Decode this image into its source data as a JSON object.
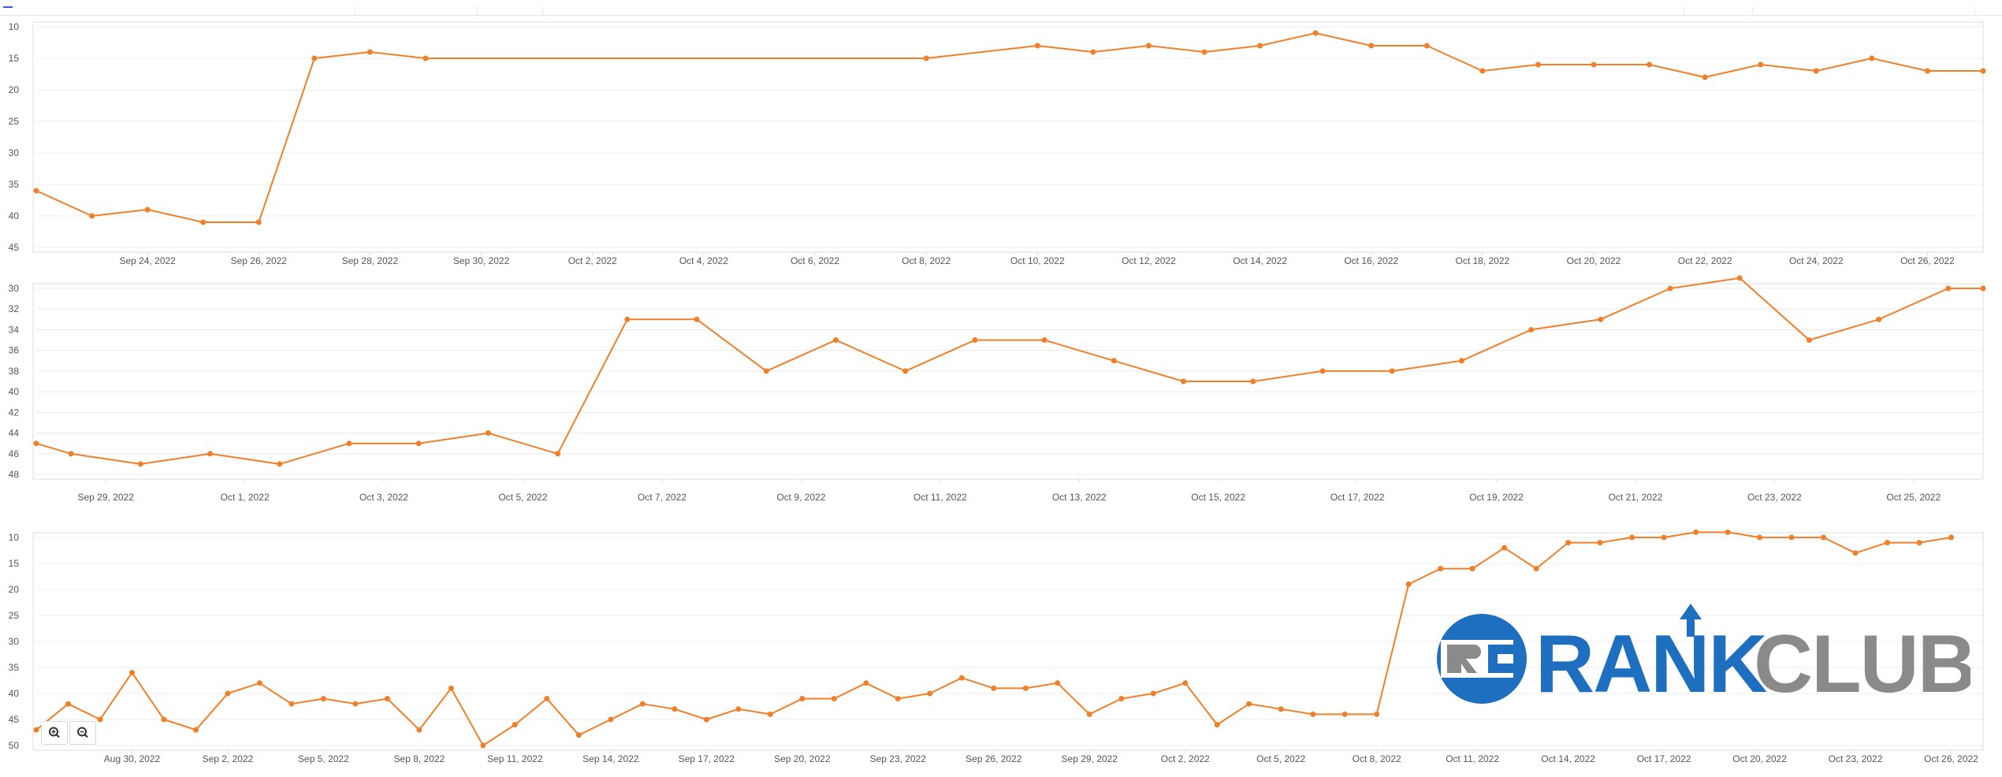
{
  "colors": {
    "series": "#f07f28",
    "grid": "#ececec",
    "axis": "#dcdcdc",
    "text": "#555555",
    "logo_blue": "#1e6fc0",
    "logo_gray": "#8a8a8a"
  },
  "toolbar": {
    "zoom_in_icon": "zoom-in-icon",
    "zoom_out_icon": "zoom-out-icon"
  },
  "logo": {
    "word1": "RANK",
    "word2": "CLUB",
    "mark": "RC"
  },
  "chart_data": [
    {
      "type": "line",
      "x_axis_type": "date",
      "y_inverted": true,
      "ylim": [
        10,
        45
      ],
      "y_ticks": [
        10,
        15,
        20,
        25,
        30,
        35,
        40,
        45
      ],
      "x_range": [
        "2022-09-22",
        "2022-10-27"
      ],
      "x_tick_labels": [
        "Sep 24, 2022",
        "Sep 26, 2022",
        "Sep 28, 2022",
        "Sep 30, 2022",
        "Oct 2, 2022",
        "Oct 4, 2022",
        "Oct 6, 2022",
        "Oct 8, 2022",
        "Oct 10, 2022",
        "Oct 12, 2022",
        "Oct 14, 2022",
        "Oct 16, 2022",
        "Oct 18, 2022",
        "Oct 20, 2022",
        "Oct 22, 2022",
        "Oct 24, 2022",
        "Oct 26, 2022"
      ],
      "x_tick_dates": [
        "2022-09-24",
        "2022-09-26",
        "2022-09-28",
        "2022-09-30",
        "2022-10-02",
        "2022-10-04",
        "2022-10-06",
        "2022-10-08",
        "2022-10-10",
        "2022-10-12",
        "2022-10-14",
        "2022-10-16",
        "2022-10-18",
        "2022-10-20",
        "2022-10-22",
        "2022-10-24",
        "2022-10-26"
      ],
      "grid": true,
      "series": [
        {
          "points": [
            [
              "2022-09-22",
              36
            ],
            [
              "2022-09-23",
              40
            ],
            [
              "2022-09-24",
              39
            ],
            [
              "2022-09-25",
              41
            ],
            [
              "2022-09-26",
              41
            ],
            [
              "2022-09-27",
              15
            ],
            [
              "2022-09-28",
              14
            ],
            [
              "2022-09-29",
              15
            ],
            [
              "2022-10-08",
              15
            ],
            [
              "2022-10-10",
              13
            ],
            [
              "2022-10-11",
              14
            ],
            [
              "2022-10-12",
              13
            ],
            [
              "2022-10-13",
              14
            ],
            [
              "2022-10-14",
              13
            ],
            [
              "2022-10-15",
              11
            ],
            [
              "2022-10-16",
              13
            ],
            [
              "2022-10-17",
              13
            ],
            [
              "2022-10-18",
              17
            ],
            [
              "2022-10-19",
              16
            ],
            [
              "2022-10-20",
              16
            ],
            [
              "2022-10-21",
              16
            ],
            [
              "2022-10-22",
              18
            ],
            [
              "2022-10-23",
              16
            ],
            [
              "2022-10-24",
              17
            ],
            [
              "2022-10-25",
              15
            ],
            [
              "2022-10-26",
              17
            ],
            [
              "2022-10-27",
              17
            ]
          ]
        }
      ]
    },
    {
      "type": "line",
      "x_axis_type": "date",
      "y_inverted": true,
      "ylim": [
        30,
        48
      ],
      "y_ticks": [
        30,
        32,
        34,
        36,
        38,
        40,
        42,
        44,
        46,
        48
      ],
      "x_range": [
        "2022-09-28",
        "2022-10-26"
      ],
      "x_tick_labels": [
        "Sep 29, 2022",
        "Oct 1, 2022",
        "Oct 3, 2022",
        "Oct 5, 2022",
        "Oct 7, 2022",
        "Oct 9, 2022",
        "Oct 11, 2022",
        "Oct 13, 2022",
        "Oct 15, 2022",
        "Oct 17, 2022",
        "Oct 19, 2022",
        "Oct 21, 2022",
        "Oct 23, 2022",
        "Oct 25, 2022"
      ],
      "x_tick_dates": [
        "2022-09-29",
        "2022-10-01",
        "2022-10-03",
        "2022-10-05",
        "2022-10-07",
        "2022-10-09",
        "2022-10-11",
        "2022-10-13",
        "2022-10-15",
        "2022-10-17",
        "2022-10-19",
        "2022-10-21",
        "2022-10-23",
        "2022-10-25"
      ],
      "grid": true,
      "series": [
        {
          "points": [
            [
              "2022-09-28",
              45
            ],
            [
              "2022-09-28T12:00",
              46
            ],
            [
              "2022-09-29T12:00",
              47
            ],
            [
              "2022-09-30T12:00",
              46
            ],
            [
              "2022-10-01T12:00",
              47
            ],
            [
              "2022-10-02T12:00",
              45
            ],
            [
              "2022-10-03T12:00",
              45
            ],
            [
              "2022-10-04T12:00",
              44
            ],
            [
              "2022-10-05T12:00",
              46
            ],
            [
              "2022-10-06T12:00",
              33
            ],
            [
              "2022-10-07T12:00",
              33
            ],
            [
              "2022-10-08T12:00",
              38
            ],
            [
              "2022-10-09T12:00",
              35
            ],
            [
              "2022-10-10T12:00",
              38
            ],
            [
              "2022-10-11T12:00",
              35
            ],
            [
              "2022-10-12T12:00",
              35
            ],
            [
              "2022-10-13T12:00",
              37
            ],
            [
              "2022-10-14T12:00",
              39
            ],
            [
              "2022-10-15T12:00",
              39
            ],
            [
              "2022-10-16T12:00",
              38
            ],
            [
              "2022-10-17T12:00",
              38
            ],
            [
              "2022-10-18T12:00",
              37
            ],
            [
              "2022-10-19T12:00",
              34
            ],
            [
              "2022-10-20T12:00",
              33
            ],
            [
              "2022-10-21T12:00",
              30
            ],
            [
              "2022-10-22T12:00",
              29
            ],
            [
              "2022-10-23T12:00",
              35
            ],
            [
              "2022-10-24T12:00",
              33
            ],
            [
              "2022-10-25T12:00",
              30
            ],
            [
              "2022-10-26",
              30
            ]
          ]
        }
      ]
    },
    {
      "type": "line",
      "x_axis_type": "date",
      "y_inverted": true,
      "ylim": [
        10,
        50
      ],
      "y_ticks": [
        10,
        15,
        20,
        25,
        30,
        35,
        40,
        45,
        50
      ],
      "x_range": [
        "2022-08-27",
        "2022-10-27"
      ],
      "x_tick_labels": [
        "Aug 30, 2022",
        "Sep 2, 2022",
        "Sep 5, 2022",
        "Sep 8, 2022",
        "Sep 11, 2022",
        "Sep 14, 2022",
        "Sep 17, 2022",
        "Sep 20, 2022",
        "Sep 23, 2022",
        "Sep 26, 2022",
        "Sep 29, 2022",
        "Oct 2, 2022",
        "Oct 5, 2022",
        "Oct 8, 2022",
        "Oct 11, 2022",
        "Oct 14, 2022",
        "Oct 17, 2022",
        "Oct 20, 2022",
        "Oct 23, 2022",
        "Oct 26, 2022"
      ],
      "x_tick_dates": [
        "2022-08-30",
        "2022-09-02",
        "2022-09-05",
        "2022-09-08",
        "2022-09-11",
        "2022-09-14",
        "2022-09-17",
        "2022-09-20",
        "2022-09-23",
        "2022-09-26",
        "2022-09-29",
        "2022-10-02",
        "2022-10-05",
        "2022-10-08",
        "2022-10-11",
        "2022-10-14",
        "2022-10-17",
        "2022-10-20",
        "2022-10-23",
        "2022-10-26"
      ],
      "grid": true,
      "series": [
        {
          "points": [
            [
              "2022-08-27",
              47
            ],
            [
              "2022-08-28",
              42
            ],
            [
              "2022-08-29",
              45
            ],
            [
              "2022-08-30",
              36
            ],
            [
              "2022-08-31",
              45
            ],
            [
              "2022-09-01",
              47
            ],
            [
              "2022-09-02",
              40
            ],
            [
              "2022-09-03",
              38
            ],
            [
              "2022-09-04",
              42
            ],
            [
              "2022-09-05",
              41
            ],
            [
              "2022-09-06",
              42
            ],
            [
              "2022-09-07",
              41
            ],
            [
              "2022-09-08",
              47
            ],
            [
              "2022-09-09",
              39
            ],
            [
              "2022-09-10",
              50
            ],
            [
              "2022-09-11",
              46
            ],
            [
              "2022-09-12",
              41
            ],
            [
              "2022-09-13",
              48
            ],
            [
              "2022-09-14",
              45
            ],
            [
              "2022-09-15",
              42
            ],
            [
              "2022-09-16",
              43
            ],
            [
              "2022-09-17",
              45
            ],
            [
              "2022-09-18",
              43
            ],
            [
              "2022-09-19",
              44
            ],
            [
              "2022-09-20",
              41
            ],
            [
              "2022-09-21",
              41
            ],
            [
              "2022-09-22",
              38
            ],
            [
              "2022-09-23",
              41
            ],
            [
              "2022-09-24",
              40
            ],
            [
              "2022-09-25",
              37
            ],
            [
              "2022-09-26",
              39
            ],
            [
              "2022-09-27",
              39
            ],
            [
              "2022-09-28",
              38
            ],
            [
              "2022-09-29",
              44
            ],
            [
              "2022-09-30",
              41
            ],
            [
              "2022-10-01",
              40
            ],
            [
              "2022-10-02",
              38
            ],
            [
              "2022-10-03",
              46
            ],
            [
              "2022-10-04",
              42
            ],
            [
              "2022-10-05",
              43
            ],
            [
              "2022-10-06",
              44
            ],
            [
              "2022-10-07",
              44
            ],
            [
              "2022-10-08",
              44
            ],
            [
              "2022-10-09",
              19
            ],
            [
              "2022-10-10",
              16
            ],
            [
              "2022-10-11",
              16
            ],
            [
              "2022-10-12",
              12
            ],
            [
              "2022-10-13",
              16
            ],
            [
              "2022-10-14",
              11
            ],
            [
              "2022-10-15",
              11
            ],
            [
              "2022-10-16",
              10
            ],
            [
              "2022-10-17",
              10
            ],
            [
              "2022-10-18",
              9
            ],
            [
              "2022-10-19",
              9
            ],
            [
              "2022-10-20",
              10
            ],
            [
              "2022-10-21",
              10
            ],
            [
              "2022-10-22",
              10
            ],
            [
              "2022-10-23",
              13
            ],
            [
              "2022-10-24",
              11
            ],
            [
              "2022-10-25",
              11
            ],
            [
              "2022-10-26",
              10
            ]
          ]
        }
      ]
    }
  ]
}
